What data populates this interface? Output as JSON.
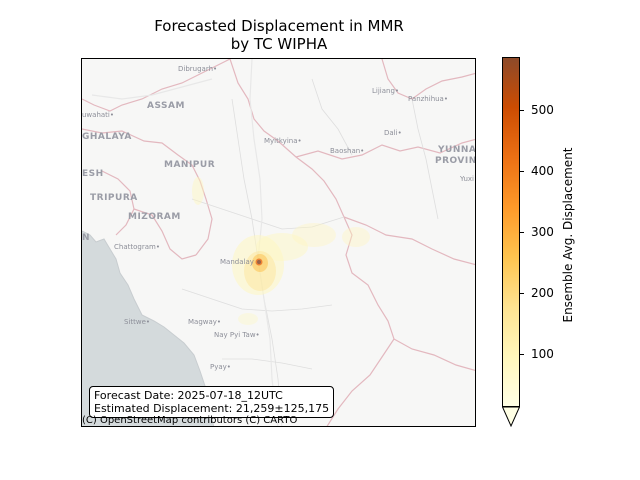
{
  "title_line1": "Forecasted Displacement in MMR",
  "title_line2": "by TC WIPHA",
  "map": {
    "places": [
      {
        "name": "Dibrugarh",
        "dot": true
      },
      {
        "name": "ASSAM",
        "kind": "region"
      },
      {
        "name": "uwahati",
        "dot": true
      },
      {
        "name": "GHALAYA",
        "kind": "region"
      },
      {
        "name": "MANIPUR",
        "kind": "region"
      },
      {
        "name": "ESH",
        "kind": "region"
      },
      {
        "name": "TRIPURA",
        "kind": "region"
      },
      {
        "name": "MIZORAM",
        "kind": "region"
      },
      {
        "name": "N",
        "kind": "region"
      },
      {
        "name": "Chattogram",
        "dot": true
      },
      {
        "name": "Myitkyina",
        "dot": true
      },
      {
        "name": "Baoshan",
        "dot": true
      },
      {
        "name": "Lijiang",
        "dot": true
      },
      {
        "name": "Panzhihua",
        "dot": true
      },
      {
        "name": "Dali",
        "dot": true
      },
      {
        "name": "YUNNAN",
        "kind": "region"
      },
      {
        "name": "PROVINC",
        "kind": "region"
      },
      {
        "name": "Yuxi",
        "dot": true
      },
      {
        "name": "Mandalay",
        "dot": false
      },
      {
        "name": "Sittwe",
        "dot": true
      },
      {
        "name": "Magway",
        "dot": true
      },
      {
        "name": "Nay Pyi Taw",
        "dot": true
      },
      {
        "name": "Pyay",
        "dot": true
      }
    ],
    "attribution": "(C) OpenStreetMap contributors (C) CARTO"
  },
  "info": {
    "forecast_date": "Forecast Date: 2025-07-18_12UTC",
    "estimated": "Estimated Displacement: 21,259±125,175"
  },
  "colorbar": {
    "label": "Ensemble Avg. Displacement",
    "ticks": [
      "100",
      "200",
      "300",
      "400",
      "500"
    ],
    "tick_values": [
      100,
      200,
      300,
      400,
      500
    ],
    "min": 15,
    "max": 585,
    "extend": "min",
    "colors": [
      "#ffffe5",
      "#fff7bc",
      "#fee391",
      "#fec44f",
      "#fe9929",
      "#ec7014",
      "#cc4c02",
      "#8c4a2a"
    ]
  },
  "colors": {
    "land": "#f7f7f6",
    "sea": "#d4dadc",
    "border": "#e3b8bf"
  }
}
